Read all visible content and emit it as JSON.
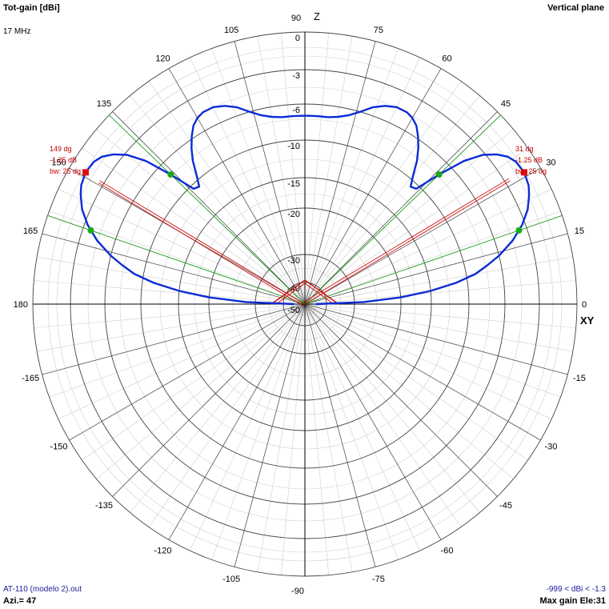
{
  "header": {
    "title": "Tot-gain [dBi]",
    "frequency": "17 MHz",
    "plane": "Vertical plane"
  },
  "footer": {
    "file": "AT-110 (modelo 2).out",
    "azimuth": "Azi.= 47",
    "range": "-999 < dBi < -1.3",
    "max_gain": "Max gain Ele:31"
  },
  "chart_data": {
    "type": "polar",
    "title": "Tot-gain [dBi]",
    "plane": "Vertical plane",
    "frequency_mhz": 17,
    "azimuth_deg": 47,
    "gain_range": "-999 < dBi < -1.3",
    "max_gain_elevation_deg": 31,
    "axis_labels": {
      "vertical": "Z",
      "horizontal": "XY"
    },
    "angle_ticks": [
      0,
      15,
      30,
      45,
      60,
      75,
      90,
      105,
      120,
      135,
      150,
      165,
      180,
      -165,
      -150,
      -135,
      -120,
      -105,
      -90,
      -75,
      -60,
      -45,
      -30,
      -15
    ],
    "radial_ticks_db": [
      0,
      -3,
      -6,
      -10,
      -15,
      -20,
      -30,
      -40,
      -50
    ],
    "series": [
      {
        "color": "#0a2bd6",
        "angles": [
          0,
          2,
          4,
          6,
          8,
          10,
          12,
          14,
          17,
          20,
          23,
          26,
          28,
          31,
          34,
          36,
          38,
          40,
          42,
          44,
          46,
          48,
          50,
          52,
          54,
          56,
          58,
          60,
          62,
          65,
          68,
          71,
          74,
          77,
          80,
          83,
          86,
          88,
          90
        ],
        "gain_db": [
          -45,
          -28,
          -20,
          -15,
          -11.5,
          -9,
          -7.5,
          -6,
          -4.5,
          -3.3,
          -2.4,
          -1.8,
          -1.5,
          -1.3,
          -1.4,
          -1.7,
          -2.3,
          -3.2,
          -4.8,
          -7.5,
          -10.5,
          -10.8,
          -9.5,
          -8,
          -6.8,
          -5.8,
          -5.1,
          -4.7,
          -4.5,
          -4.5,
          -4.8,
          -5.3,
          -6,
          -6.7,
          -7.1,
          -7.3,
          -7.3,
          -7.3,
          -7.3
        ]
      }
    ],
    "markers": {
      "max_gain_angle": 31,
      "max_gain_level": "-1.25 dB",
      "beamwidth_deg": 25,
      "half_power_angles": [
        19,
        44
      ],
      "labels_right": [
        "31 dg",
        "-1.25 dB",
        "bw: 25 dg"
      ],
      "labels_left": [
        "149 dg",
        "-1.25 dB",
        "bw: 25 dg"
      ]
    },
    "grid": true
  }
}
